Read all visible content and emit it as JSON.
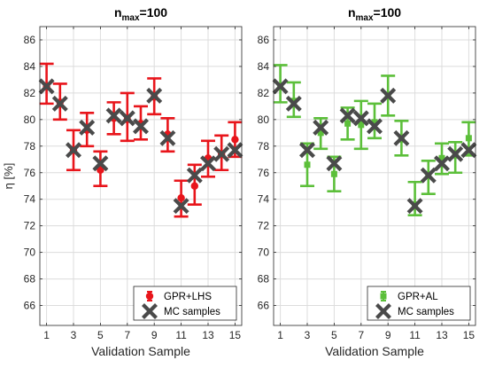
{
  "chart_data": [
    {
      "type": "scatter",
      "title_main": "n",
      "title_sub": "max",
      "title_rest": "=100",
      "xlabel": "Validation Sample",
      "ylabel": "η [%]",
      "xlim": [
        0.5,
        15.5
      ],
      "ylim": [
        64.5,
        87
      ],
      "xticks": [
        1,
        3,
        5,
        7,
        9,
        11,
        13,
        15
      ],
      "yticks": [
        66,
        68,
        70,
        72,
        74,
        76,
        78,
        80,
        82,
        84,
        86
      ],
      "grid": true,
      "legend_position": "bottom-right",
      "x": [
        1,
        2,
        3,
        4,
        5,
        6,
        7,
        8,
        9,
        10,
        11,
        12,
        13,
        14,
        15
      ],
      "series": [
        {
          "name": "GPR+LHS",
          "color": "#e8151b",
          "marker": "circle",
          "values": [
            82.5,
            81.3,
            77.7,
            79.2,
            76.2,
            80.1,
            80.0,
            79.7,
            81.7,
            78.9,
            74.1,
            75.0,
            77.1,
            77.4,
            78.5
          ],
          "lower": [
            81.2,
            80.0,
            76.2,
            78.0,
            75.0,
            78.9,
            78.4,
            78.5,
            80.4,
            77.6,
            72.7,
            73.6,
            75.7,
            76.2,
            77.2
          ],
          "upper": [
            84.2,
            82.7,
            79.2,
            80.5,
            77.6,
            81.3,
            82.0,
            81.0,
            83.1,
            80.1,
            75.4,
            76.6,
            78.4,
            78.8,
            79.8
          ]
        },
        {
          "name": "MC samples",
          "color": "#4a4a4a",
          "marker": "x",
          "values": [
            82.5,
            81.2,
            77.7,
            79.4,
            76.7,
            80.3,
            80.1,
            79.5,
            81.8,
            78.6,
            73.5,
            75.8,
            76.7,
            77.4,
            77.7
          ]
        }
      ]
    },
    {
      "type": "scatter",
      "title_main": "n",
      "title_sub": "max",
      "title_rest": "=100",
      "xlabel": "Validation Sample",
      "ylabel": "",
      "xlim": [
        0.5,
        15.5
      ],
      "ylim": [
        64.5,
        87
      ],
      "xticks": [
        1,
        3,
        5,
        7,
        9,
        11,
        13,
        15
      ],
      "yticks": [
        66,
        68,
        70,
        72,
        74,
        76,
        78,
        80,
        82,
        84,
        86
      ],
      "grid": true,
      "legend_position": "bottom-right",
      "x": [
        1,
        2,
        3,
        4,
        5,
        6,
        7,
        8,
        9,
        10,
        11,
        12,
        13,
        14,
        15
      ],
      "series": [
        {
          "name": "GPR+AL",
          "color": "#5cbf3a",
          "marker": "square",
          "values": [
            82.5,
            81.4,
            76.6,
            79.0,
            75.9,
            79.7,
            79.6,
            79.8,
            81.8,
            78.5,
            73.6,
            75.8,
            77.1,
            77.3,
            78.6
          ],
          "lower": [
            81.3,
            80.2,
            75.0,
            77.8,
            74.6,
            78.5,
            77.8,
            78.6,
            80.3,
            77.3,
            72.8,
            74.4,
            75.9,
            76.0,
            77.3
          ],
          "upper": [
            84.1,
            82.8,
            78.2,
            80.1,
            77.2,
            80.9,
            81.4,
            81.2,
            83.3,
            79.9,
            75.3,
            76.9,
            78.2,
            78.3,
            79.8
          ]
        },
        {
          "name": "MC samples",
          "color": "#4a4a4a",
          "marker": "x",
          "values": [
            82.5,
            81.2,
            77.7,
            79.4,
            76.7,
            80.3,
            80.1,
            79.5,
            81.8,
            78.6,
            73.5,
            75.8,
            76.7,
            77.4,
            77.7
          ]
        }
      ]
    }
  ]
}
